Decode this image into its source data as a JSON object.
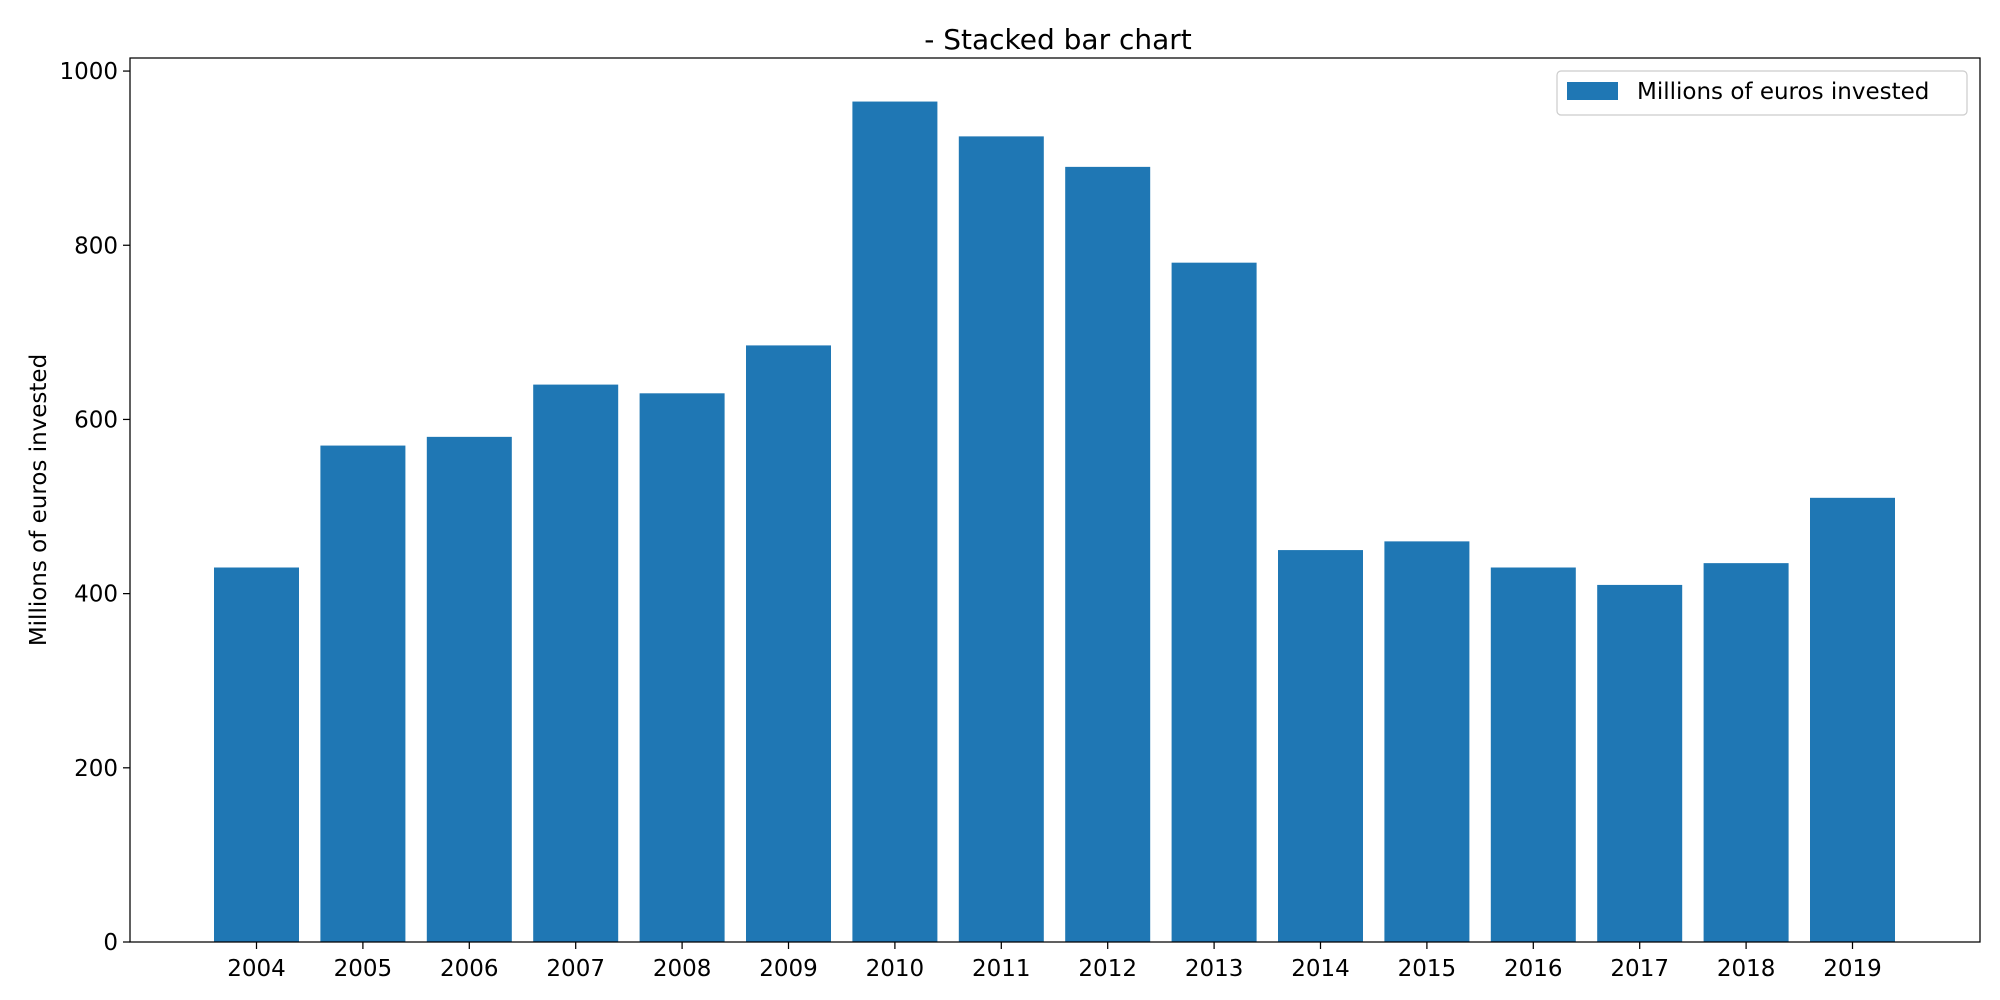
{
  "chart_data": {
    "type": "bar",
    "title": "- Stacked bar chart",
    "xlabel": "",
    "ylabel": "Millions of euros invested",
    "categories": [
      "2004",
      "2005",
      "2006",
      "2007",
      "2008",
      "2009",
      "2010",
      "2011",
      "2012",
      "2013",
      "2014",
      "2015",
      "2016",
      "2017",
      "2018",
      "2019"
    ],
    "series": [
      {
        "name": "Millions of euros invested",
        "color": "#1f77b4",
        "values": [
          430,
          570,
          580,
          640,
          630,
          685,
          965,
          925,
          890,
          780,
          450,
          460,
          430,
          410,
          435,
          510
        ]
      }
    ],
    "ylim": [
      0,
      1015
    ],
    "yticks": [
      0,
      200,
      400,
      600,
      800,
      1000
    ],
    "grid": false,
    "legend_position": "top-right"
  }
}
